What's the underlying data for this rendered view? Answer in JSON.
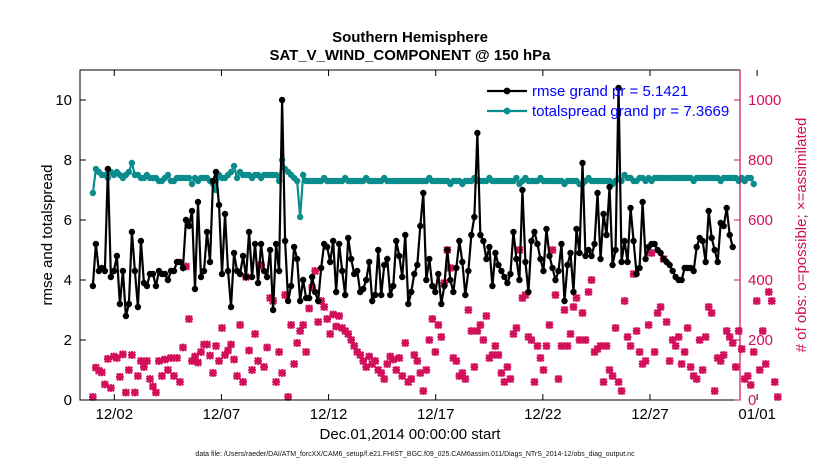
{
  "title_line1": "Southern Hemisphere",
  "title_line2": "SAT_V_WIND_COMPONENT @ 150 hPa",
  "xlabel": "Dec.01,2014 00:00:00 start",
  "footer": "data file: /Users/raeder/DAI/ATM_forcXX/CAM6_setup/f.e21.FHIST_BGC.f09_025.CAM6assim.011/Diags_NTrS_2014-12/obs_diag_output.nc",
  "chart_data": {
    "type": "line",
    "xlim": [
      0.4,
      31.2
    ],
    "x_ticks": [
      2,
      7,
      12,
      17,
      22,
      27,
      32
    ],
    "x_tick_labels": [
      "12/02",
      "12/07",
      "12/12",
      "12/17",
      "12/22",
      "12/27",
      "01/01"
    ],
    "left_axis": {
      "label": "rmse and totalspread",
      "ylim": [
        0,
        11
      ],
      "ticks": [
        0,
        2,
        4,
        6,
        8,
        10
      ]
    },
    "right_axis": {
      "label": "# of obs: o=possible; ×=assimilated",
      "ylim": [
        0,
        1100
      ],
      "ticks": [
        0,
        200,
        400,
        600,
        800,
        1000
      ]
    },
    "legend": {
      "position": "top-right",
      "entries": [
        "rmse grand pr = 5.1421",
        "totalspread grand pr = 7.3669"
      ]
    },
    "colors": {
      "rmse": "#000000",
      "spread": "#0a8c8c",
      "obs": "#d20f5a"
    },
    "series": [
      {
        "name": "rmse",
        "axis": "left",
        "values": [
          3.8,
          5.2,
          4.3,
          4.4,
          4.3,
          7.7,
          4.1,
          4.3,
          4.8,
          3.2,
          4.3,
          2.8,
          3.2,
          5.6,
          4.3,
          3.1,
          5.3,
          3.9,
          3.8,
          4.2,
          4.2,
          3.8,
          4.3,
          4.2,
          4.2,
          4.0,
          4.3,
          4.3,
          4.6,
          4.6,
          4.4,
          6.0,
          5.8,
          6.3,
          3.7,
          6.6,
          4.1,
          4.3,
          5.6,
          4.6,
          7.3,
          7.6,
          6.5,
          4.2,
          6.2,
          4.3,
          3.1,
          4.9,
          4.3,
          4.2,
          4.8,
          4.1,
          5.6,
          4.1,
          5.2,
          3.9,
          5.2,
          4.3,
          4.1,
          5.0,
          3.0,
          5.2,
          4.3,
          10.0,
          5.3,
          3.3,
          3.8,
          5.1,
          4.7,
          3.3,
          4.0,
          3.4,
          3.4,
          4.1,
          3.6,
          3.3,
          4.4,
          5.2,
          5.1,
          4.6,
          5.3,
          3.6,
          5.2,
          4.3,
          3.5,
          5.4,
          4.7,
          4.2,
          4.3,
          3.6,
          3.7,
          4.0,
          4.6,
          3.3,
          3.5,
          5.0,
          3.5,
          4.5,
          4.7,
          3.5,
          3.8,
          5.3,
          4.8,
          4.1,
          5.5,
          3.2,
          3.6,
          4.2,
          4.5,
          5.8,
          6.9,
          4.0,
          4.7,
          3.8,
          3.6,
          4.2,
          3.2,
          3.8,
          5.0,
          4.0,
          3.6,
          4.4,
          5.3,
          4.6,
          3.5,
          4.3,
          5.5,
          6.1,
          8.9,
          5.5,
          5.3,
          4.7,
          5.1,
          3.8,
          4.9,
          4.5,
          4.3,
          4.1,
          3.9,
          4.2,
          5.6,
          4.7,
          4.0,
          7.0,
          4.6,
          3.6,
          5.3,
          5.6,
          5.2,
          4.7,
          4.3,
          5.7,
          4.8,
          4.4,
          4.0,
          4.3,
          5.2,
          3.3,
          4.5,
          4.9,
          3.6,
          5.7,
          4.9,
          7.9,
          4.8,
          5.0,
          4.8,
          5.2,
          6.9,
          4.7,
          6.2,
          5.5,
          7.1,
          4.5,
          5.0,
          10.4,
          4.6,
          5.3,
          4.6,
          6.4,
          5.3,
          4.2,
          4.4,
          6.6,
          4.7,
          5.1,
          5.2,
          5.2,
          5.0,
          4.9,
          4.7,
          4.6,
          4.5,
          4.3,
          4.1,
          4.0,
          4.0,
          4.4,
          4.4,
          4.4,
          4.3,
          5.1,
          5.4,
          5.3,
          4.6,
          6.3,
          5.4,
          5.0,
          4.6,
          5.9,
          5.8,
          6.4,
          5.5,
          5.1
        ]
      },
      {
        "name": "totalspread",
        "axis": "left",
        "values": [
          6.9,
          7.7,
          7.6,
          7.5,
          7.5,
          7.4,
          7.6,
          7.5,
          7.6,
          7.5,
          7.4,
          7.5,
          7.6,
          7.9,
          7.5,
          7.5,
          7.4,
          7.4,
          7.5,
          7.4,
          7.4,
          7.4,
          7.3,
          7.3,
          7.4,
          7.5,
          7.3,
          7.3,
          7.4,
          7.4,
          7.4,
          7.4,
          7.4,
          7.2,
          7.4,
          7.3,
          7.4,
          7.4,
          7.4,
          7.3,
          7.2,
          7.0,
          7.5,
          7.4,
          7.4,
          7.5,
          7.6,
          7.8,
          7.4,
          7.6,
          7.5,
          7.5,
          7.5,
          7.4,
          7.5,
          7.5,
          7.4,
          7.5,
          7.5,
          7.5,
          7.5,
          7.5,
          7.3,
          8.0,
          7.7,
          7.6,
          7.5,
          7.4,
          7.3,
          6.1,
          7.5,
          7.3,
          7.3,
          7.3,
          7.3,
          7.3,
          7.3,
          7.4,
          7.3,
          7.3,
          7.3,
          7.3,
          7.3,
          7.3,
          7.4,
          7.3,
          7.3,
          7.3,
          7.3,
          7.3,
          7.3,
          7.4,
          7.3,
          7.3,
          7.3,
          7.3,
          7.3,
          7.4,
          7.3,
          7.3,
          7.3,
          7.3,
          7.3,
          7.3,
          7.3,
          7.3,
          7.3,
          7.3,
          7.3,
          7.3,
          7.3,
          7.3,
          7.4,
          7.3,
          7.3,
          7.3,
          7.3,
          7.3,
          7.3,
          7.2,
          7.3,
          7.3,
          7.3,
          7.2,
          7.3,
          7.3,
          7.3,
          7.4,
          7.3,
          7.3,
          7.3,
          7.3,
          7.4,
          7.3,
          7.3,
          7.3,
          7.3,
          7.3,
          7.3,
          7.3,
          7.3,
          7.4,
          7.2,
          7.3,
          7.4,
          7.3,
          7.3,
          7.3,
          7.3,
          7.4,
          7.3,
          7.3,
          7.3,
          7.3,
          7.3,
          7.3,
          7.3,
          7.2,
          7.3,
          7.3,
          7.3,
          7.3,
          7.2,
          7.2,
          7.3,
          7.4,
          7.3,
          7.3,
          7.3,
          7.3,
          7.3,
          7.3,
          7.3,
          7.2,
          7.3,
          7.4,
          7.3,
          7.5,
          7.4,
          7.4,
          7.3,
          7.3,
          7.4,
          7.4,
          7.3,
          7.4,
          7.3,
          7.4,
          7.4,
          7.4,
          7.4,
          7.4,
          7.4,
          7.4,
          7.4,
          7.4,
          7.4,
          7.4,
          7.4,
          7.4,
          7.3,
          7.4,
          7.4,
          7.4,
          7.4,
          7.4,
          7.4,
          7.4,
          7.4,
          7.3,
          7.4,
          7.4,
          7.4,
          7.4,
          7.4,
          7.3,
          7.4,
          7.3,
          7.4,
          7.4,
          7.2
        ]
      },
      {
        "name": "obs assimilated",
        "axis": "right",
        "values": [
          10,
          108,
          98,
          92,
          52,
          137,
          40,
          145,
          140,
          77,
          152,
          25,
          100,
          150,
          25,
          80,
          130,
          110,
          130,
          70,
          45,
          25,
          130,
          80,
          135,
          100,
          140,
          80,
          140,
          60,
          175,
          445,
          270,
          130,
          145,
          125,
          160,
          185,
          185,
          148,
          90,
          180,
          130,
          240,
          150,
          165,
          185,
          135,
          80,
          250,
          60,
          410,
          165,
          100,
          220,
          130,
          450,
          110,
          175,
          340,
          330,
          60,
          160,
          90,
          350,
          10,
          250,
          120,
          190,
          230,
          250,
          160,
          305,
          375,
          430,
          260,
          330,
          310,
          270,
          220,
          285,
          245,
          280,
          240,
          230,
          220,
          200,
          180,
          160,
          150,
          130,
          110,
          145,
          120,
          130,
          100,
          90,
          70,
          120,
          145,
          135,
          100,
          140,
          80,
          190,
          60,
          70,
          150,
          130,
          90,
          30,
          100,
          200,
          270,
          160,
          250,
          210,
          390,
          500,
          440,
          140,
          130,
          80,
          90,
          70,
          300,
          230,
          110,
          230,
          250,
          200,
          280,
          140,
          150,
          180,
          150,
          90,
          60,
          110,
          70,
          220,
          240,
          500,
          340,
          350,
          210,
          200,
          60,
          180,
          140,
          100,
          180,
          250,
          500,
          350,
          70,
          180,
          300,
          180,
          220,
          310,
          340,
          200,
          290,
          200,
          360,
          400,
          160,
          170,
          180,
          60,
          180,
          100,
          80,
          240,
          60,
          30,
          330,
          210,
          180,
          420,
          230,
          160,
          120,
          130,
          250,
          490,
          160,
          290,
          310,
          470,
          260,
          130,
          200,
          180,
          210,
          120,
          160,
          240,
          110,
          80,
          70,
          200,
          100,
          210,
          310,
          290,
          30,
          140,
          130,
          150,
          230,
          210,
          190,
          110,
          230,
          170,
          70,
          80,
          50,
          160,
          330,
          100,
          230,
          120,
          360,
          330,
          60,
          10
        ]
      }
    ]
  }
}
